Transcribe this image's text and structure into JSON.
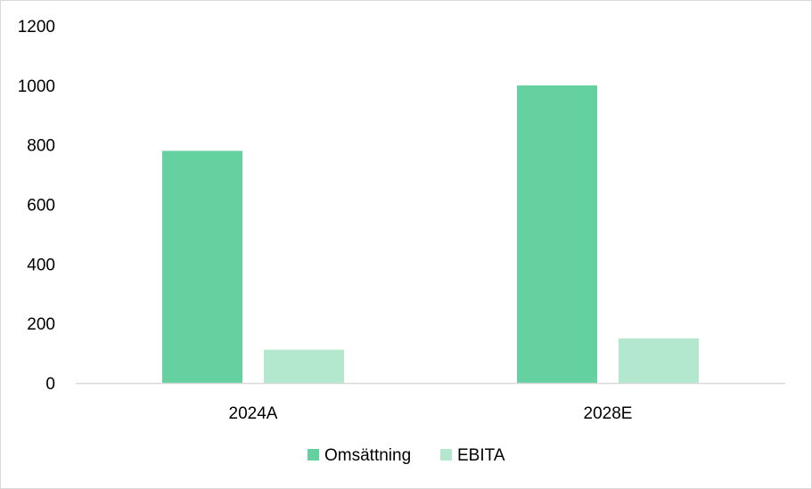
{
  "chart_data": {
    "type": "bar",
    "categories": [
      "2024A",
      "2028E"
    ],
    "series": [
      {
        "name": "Omsättning",
        "values": [
          780,
          1000
        ],
        "color": "#66d1a0"
      },
      {
        "name": "EBITA",
        "values": [
          112,
          150
        ],
        "color": "#b3e8cf"
      }
    ],
    "y_ticks": [
      "0",
      "200",
      "400",
      "600",
      "800",
      "1000",
      "1200"
    ],
    "ylim": [
      0,
      1200
    ],
    "grid": false,
    "legend": "bottom-center",
    "axis_color": "#d9d9d9"
  }
}
